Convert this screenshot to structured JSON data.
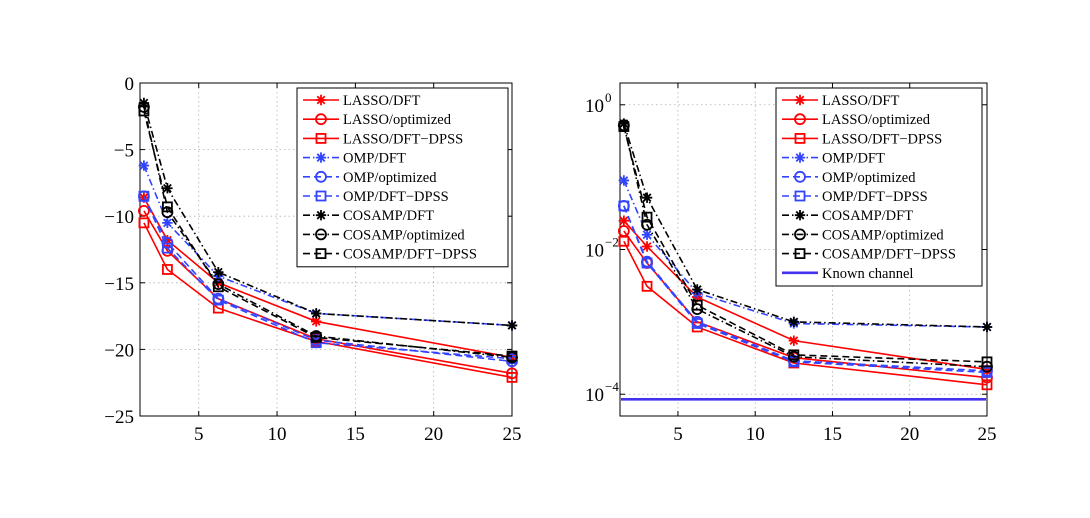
{
  "chart_data": [
    {
      "type": "line",
      "yscale": "linear",
      "x": [
        1.5,
        3,
        6.25,
        12.5,
        25
      ],
      "xlim": [
        1.25,
        25
      ],
      "ylim": [
        -25,
        0
      ],
      "xticks": [
        5,
        10,
        15,
        20,
        25
      ],
      "xtick_labels": [
        "5",
        "10",
        "15",
        "20",
        "25"
      ],
      "yticks": [
        0,
        -5,
        -10,
        -15,
        -20,
        -25
      ],
      "ytick_labels": [
        "0",
        "−5",
        "−10",
        "−15",
        "−20",
        "−25"
      ],
      "grid": true,
      "legend_position": "top-right",
      "series": [
        {
          "name": "LASSO/DFT",
          "color": "#ff0000",
          "dash": "solid",
          "marker": "star",
          "values": [
            -8.6,
            -11.8,
            -15.0,
            -17.9,
            -20.6
          ]
        },
        {
          "name": "LASSO/optimized",
          "color": "#ff0000",
          "dash": "solid",
          "marker": "circle",
          "values": [
            -9.6,
            -12.6,
            -16.2,
            -19.2,
            -21.8
          ]
        },
        {
          "name": "LASSO/DFT−DPSS",
          "color": "#ff0000",
          "dash": "solid",
          "marker": "square",
          "values": [
            -10.5,
            -14.0,
            -16.9,
            -19.4,
            -22.1
          ]
        },
        {
          "name": "OMP/DFT",
          "color": "#3344ff",
          "dash": "dashdot",
          "marker": "star",
          "values": [
            -6.2,
            -10.5,
            -14.5,
            -17.3,
            -18.2
          ]
        },
        {
          "name": "OMP/optimized",
          "color": "#3344ff",
          "dash": "dashed",
          "marker": "circle",
          "values": [
            -8.5,
            -12.0,
            -16.2,
            -19.3,
            -20.9
          ]
        },
        {
          "name": "OMP/DFT−DPSS",
          "color": "#3344ff",
          "dash": "dashed",
          "marker": "square",
          "values": [
            -8.5,
            -12.4,
            -16.3,
            -19.5,
            -20.7
          ]
        },
        {
          "name": "COSAMP/DFT",
          "color": "#000000",
          "dash": "dashdot",
          "marker": "star",
          "values": [
            -1.5,
            -7.9,
            -14.2,
            -17.3,
            -18.2
          ]
        },
        {
          "name": "COSAMP/optimized",
          "color": "#000000",
          "dash": "dashdot",
          "marker": "circle",
          "values": [
            -1.8,
            -9.7,
            -15.1,
            -19.0,
            -20.6
          ]
        },
        {
          "name": "COSAMP/DFT−DPSS",
          "color": "#000000",
          "dash": "dashed",
          "marker": "square",
          "values": [
            -2.1,
            -9.3,
            -15.3,
            -19.1,
            -20.5
          ]
        }
      ]
    },
    {
      "type": "line",
      "yscale": "log",
      "x": [
        1.5,
        3,
        6.25,
        12.5,
        25
      ],
      "xlim": [
        1.25,
        25
      ],
      "ylim": [
        5e-05,
        2
      ],
      "xticks": [
        5,
        10,
        15,
        20,
        25
      ],
      "xtick_labels": [
        "5",
        "10",
        "15",
        "20",
        "25"
      ],
      "yticks": [
        1,
        0.01,
        0.0001
      ],
      "ytick_bases": [
        "10",
        "10",
        "10"
      ],
      "ytick_exponents": [
        "0",
        "−2",
        "−4"
      ],
      "grid": true,
      "legend_position": "top-right",
      "series": [
        {
          "name": "LASSO/DFT",
          "color": "#ff0000",
          "dash": "solid",
          "marker": "star",
          "values": [
            0.025,
            0.011,
            0.0022,
            0.00055,
            0.00022
          ]
        },
        {
          "name": "LASSO/optimized",
          "color": "#ff0000",
          "dash": "solid",
          "marker": "circle",
          "values": [
            0.018,
            0.0065,
            0.001,
            0.00032,
            0.00017
          ]
        },
        {
          "name": "LASSO/DFT−DPSS",
          "color": "#ff0000",
          "dash": "solid",
          "marker": "square",
          "values": [
            0.013,
            0.0031,
            0.00085,
            0.00027,
            0.000135
          ]
        },
        {
          "name": "OMP/DFT",
          "color": "#3344ff",
          "dash": "dashdot",
          "marker": "star",
          "values": [
            0.09,
            0.016,
            0.0025,
            0.00095,
            0.00085
          ]
        },
        {
          "name": "OMP/optimized",
          "color": "#3344ff",
          "dash": "dashed",
          "marker": "circle",
          "values": [
            0.04,
            0.0068,
            0.001,
            0.00029,
            0.00021
          ]
        },
        {
          "name": "OMP/DFT−DPSS",
          "color": "#3344ff",
          "dash": "dashed",
          "marker": "square",
          "values": [
            0.04,
            0.0065,
            0.00095,
            0.00028,
            0.0002
          ]
        },
        {
          "name": "COSAMP/DFT",
          "color": "#000000",
          "dash": "dashdot",
          "marker": "star",
          "values": [
            0.55,
            0.052,
            0.0028,
            0.001,
            0.00085
          ]
        },
        {
          "name": "COSAMP/optimized",
          "color": "#000000",
          "dash": "dashdot",
          "marker": "circle",
          "values": [
            0.52,
            0.022,
            0.0015,
            0.00033,
            0.00024
          ]
        },
        {
          "name": "COSAMP/DFT−DPSS",
          "color": "#000000",
          "dash": "dashed",
          "marker": "square",
          "values": [
            0.5,
            0.028,
            0.0017,
            0.00035,
            0.00028
          ]
        },
        {
          "name": "Known channel",
          "color": "#4433ee",
          "dash": "solid",
          "marker": "none",
          "values": [
            8.5e-05,
            8.5e-05,
            8.5e-05,
            8.5e-05,
            8.5e-05
          ],
          "xrange": [
            1.25,
            25
          ]
        }
      ]
    }
  ]
}
